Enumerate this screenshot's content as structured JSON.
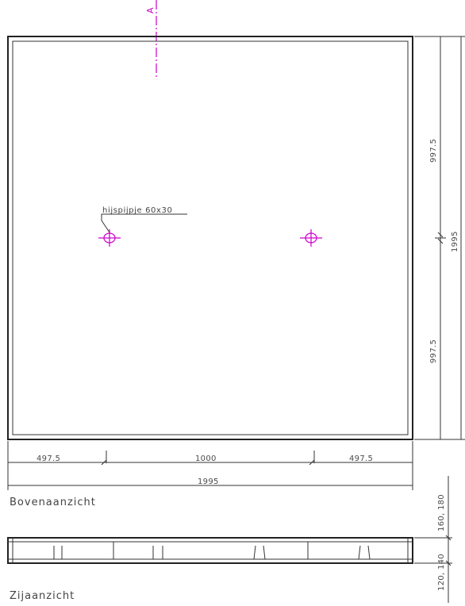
{
  "section_marker": "A",
  "annotation": {
    "label": "hijspijpje 60x30"
  },
  "dimensions": {
    "top_right": "997.5",
    "bottom_right": "997.5",
    "overall_height": "1995",
    "left_bottom": "497.5",
    "middle_bottom": "1000",
    "right_bottom": "497.5",
    "overall_width": "1995",
    "side_thickness": "160, 180",
    "side_lower": "120, 140"
  },
  "views": {
    "top_view": "Bovenaanzicht",
    "side_view": "Zijaanzicht"
  },
  "colors": {
    "outline": "#222222",
    "dimension": "#333333",
    "centerline": "#cc00cc"
  }
}
